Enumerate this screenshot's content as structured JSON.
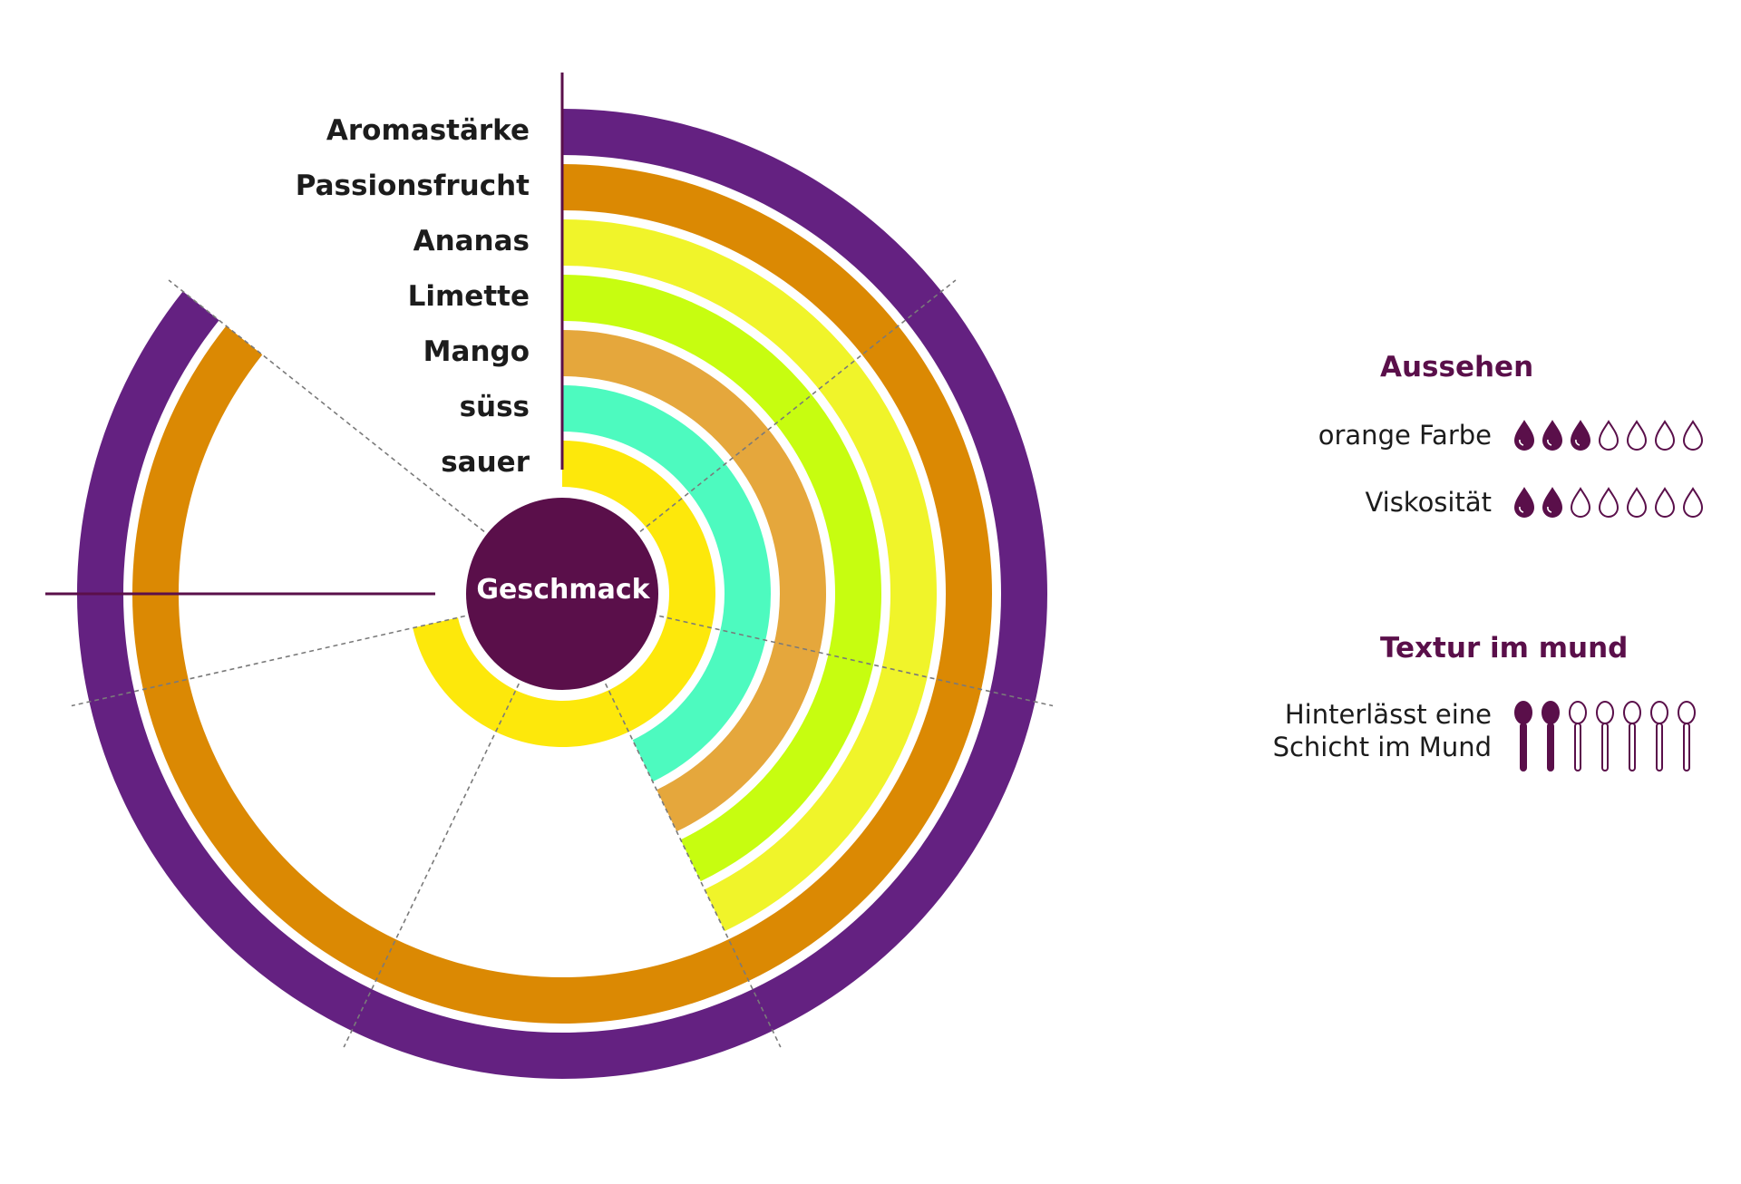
{
  "chart_data": {
    "type": "radial-bar",
    "center_label": "Geschmack",
    "categories": [
      "Aromastärke",
      "Passionsfrucht",
      "Ananas",
      "Limette",
      "Mango",
      "süss",
      "sauer"
    ],
    "values": [
      6,
      6,
      3,
      3,
      3,
      3,
      5
    ],
    "max": 7,
    "colors": [
      "#642181",
      "#db8903",
      "#f0f42a",
      "#c7fd10",
      "#e5a73c",
      "#4dfabf",
      "#fde80b"
    ]
  },
  "aussehen": {
    "title": "Aussehen",
    "rows": [
      {
        "label": "orange Farbe",
        "value": 3,
        "max": 7,
        "icon": "drop-icon"
      },
      {
        "label": "Viskosität",
        "value": 2,
        "max": 7,
        "icon": "drop-icon"
      }
    ]
  },
  "textur": {
    "title": "Textur im mund",
    "rows": [
      {
        "label_line1": "Hinterlässt eine",
        "label_line2": "Schicht im Mund",
        "value": 2,
        "max": 7,
        "icon": "spoon-icon"
      }
    ]
  },
  "colors": {
    "accent": "#5a0f4a",
    "text": "#1c1c1c"
  }
}
